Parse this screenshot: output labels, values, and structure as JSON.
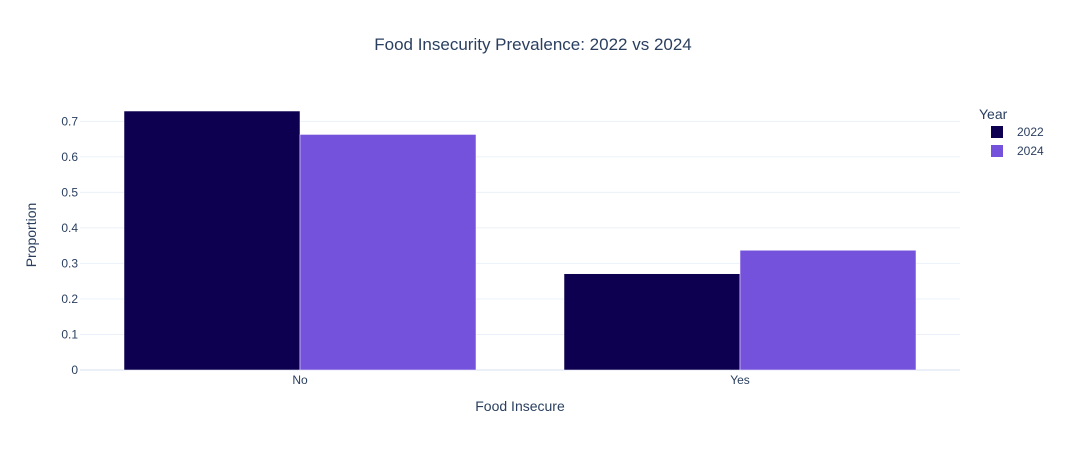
{
  "chart_data": {
    "type": "bar",
    "title": "Food Insecurity Prevalence: 2022 vs 2024",
    "xlabel": "Food Insecure",
    "ylabel": "Proportion",
    "categories": [
      "No",
      "Yes"
    ],
    "series": [
      {
        "name": "2022",
        "values": [
          0.729,
          0.271
        ],
        "color": "#0d0050"
      },
      {
        "name": "2024",
        "values": [
          0.663,
          0.337
        ],
        "color": "#7552dc"
      }
    ],
    "ylim": [
      0,
      0.76
    ],
    "yticks": [
      0,
      0.1,
      0.2,
      0.3,
      0.4,
      0.5,
      0.6,
      0.7
    ],
    "ytick_labels": [
      "0",
      "0.1",
      "0.2",
      "0.3",
      "0.4",
      "0.5",
      "0.6",
      "0.7"
    ],
    "grid": true,
    "legend": {
      "title": "Year",
      "position": "top-right",
      "entries": [
        "2022",
        "2024"
      ]
    }
  }
}
